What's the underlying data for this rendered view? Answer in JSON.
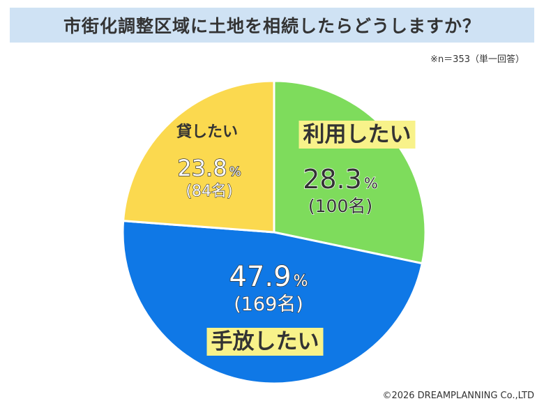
{
  "header": {
    "title": "市街化調整区域に土地を相続したらどうしますか？",
    "note": "※n＝353（単一回答）"
  },
  "footer": {
    "credit": "©2026 DREAMPLANNING Co.,LTD"
  },
  "chart_data": {
    "type": "pie",
    "start": "12 o'clock",
    "direction": "clockwise",
    "slices": [
      {
        "label": "利用したい",
        "value": 28.3,
        "percent_text": "28.3",
        "unit": "%",
        "count_text": "(100名)",
        "color": "#7edc5c",
        "label_highlight": "#f8f28a"
      },
      {
        "label": "手放したい",
        "value": 47.9,
        "percent_text": "47.9",
        "unit": "%",
        "count_text": "(169名)",
        "color": "#0f78e6",
        "label_highlight": "#f8f28a"
      },
      {
        "label": "貸したい",
        "value": 23.8,
        "percent_text": "23.8",
        "unit": "%",
        "count_text": "(84名)",
        "color": "#fbd94f",
        "label_highlight": ""
      }
    ]
  }
}
